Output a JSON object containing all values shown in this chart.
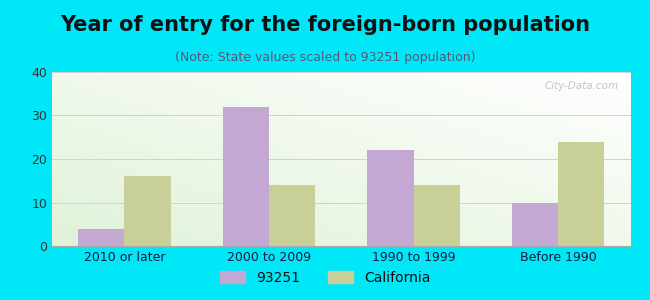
{
  "title": "Year of entry for the foreign-born population",
  "subtitle": "(Note: State values scaled to 93251 population)",
  "categories": [
    "2010 or later",
    "2000 to 2009",
    "1990 to 1999",
    "Before 1990"
  ],
  "values_93251": [
    4,
    32,
    22,
    10
  ],
  "values_california": [
    16,
    14,
    14,
    24
  ],
  "bar_color_93251": "#c4a8d4",
  "bar_color_california": "#c8d098",
  "background_outer": "#00e8f8",
  "ylim": [
    0,
    40
  ],
  "yticks": [
    0,
    10,
    20,
    30,
    40
  ],
  "legend_label_1": "93251",
  "legend_label_2": "California",
  "bar_width": 0.32,
  "title_fontsize": 15,
  "subtitle_fontsize": 9,
  "tick_fontsize": 9,
  "legend_fontsize": 10,
  "watermark_text": "City-Data.com"
}
